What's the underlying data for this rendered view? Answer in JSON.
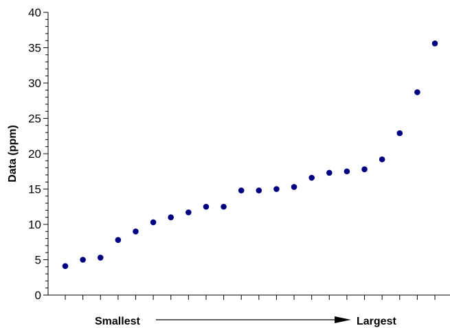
{
  "chart_data": {
    "type": "scatter",
    "ylabel": "Data (ppm)",
    "xlabel_left": "Smallest",
    "xlabel_right": "Largest",
    "ylim": [
      0,
      40
    ],
    "yticks": [
      "0",
      "5",
      "10",
      "15",
      "20",
      "25",
      "30",
      "35",
      "40"
    ],
    "x": [
      1,
      2,
      3,
      4,
      5,
      6,
      7,
      8,
      9,
      10,
      11,
      12,
      13,
      14,
      15,
      16,
      17,
      18,
      19,
      20,
      21,
      22
    ],
    "values": [
      4.1,
      5.0,
      5.3,
      7.8,
      9.0,
      10.3,
      11.0,
      11.7,
      12.5,
      12.5,
      14.8,
      14.8,
      15.0,
      15.3,
      16.6,
      17.3,
      17.5,
      17.8,
      19.2,
      22.9,
      28.7,
      35.6
    ],
    "marker_color": "#000080",
    "grid": false,
    "legend": "none"
  }
}
